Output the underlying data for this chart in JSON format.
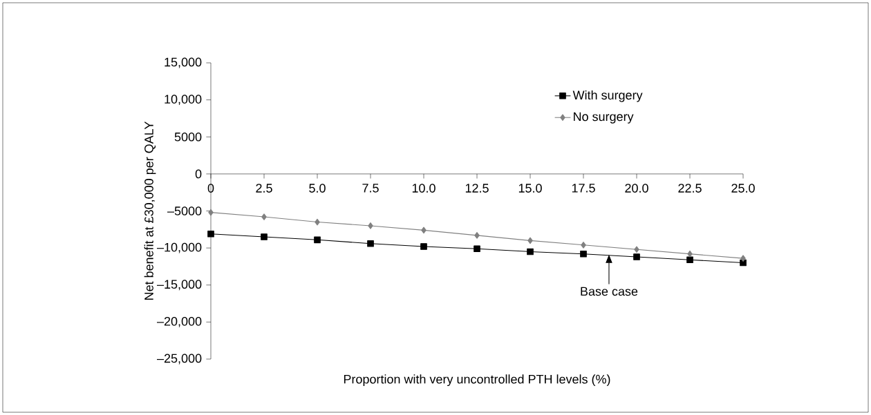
{
  "chart_data": {
    "type": "line",
    "xlabel": "Proportion with very uncontrolled PTH levels (%)",
    "ylabel": "Net benefit at £30,000 per QALY",
    "x": [
      0,
      2.5,
      5,
      7.5,
      10,
      12.5,
      15,
      17.5,
      20,
      22.5,
      25
    ],
    "series": [
      {
        "name": "With surgery",
        "color": "#000000",
        "marker": "square",
        "values": [
          -8100,
          -8500,
          -8900,
          -9400,
          -9800,
          -10100,
          -10500,
          -10800,
          -11200,
          -11600,
          -12000
        ]
      },
      {
        "name": "No surgery",
        "color": "#808080",
        "marker": "diamond",
        "values": [
          -5200,
          -5800,
          -6500,
          -7000,
          -7600,
          -8300,
          -9000,
          -9600,
          -10200,
          -10800,
          -11400
        ]
      }
    ],
    "xlim": [
      0,
      25
    ],
    "ylim": [
      -25000,
      15000
    ],
    "xticks": [
      0,
      2.5,
      {
        "value": 5,
        "label": "5.0"
      },
      7.5,
      {
        "value": 10,
        "label": "10.0"
      },
      12.5,
      {
        "value": 15,
        "label": "15.0"
      },
      17.5,
      {
        "value": 20,
        "label": "20.0"
      },
      22.5,
      {
        "value": 25,
        "label": "25.0"
      }
    ],
    "yticks": [
      {
        "value": -25000,
        "label": "–25,000"
      },
      {
        "value": -20000,
        "label": "–20,000"
      },
      {
        "value": -15000,
        "label": "–15,000"
      },
      {
        "value": -10000,
        "label": "–10,000"
      },
      {
        "value": -5000,
        "label": "–5000"
      },
      0,
      5000,
      {
        "value": 10000,
        "label": "10,000"
      },
      {
        "value": 15000,
        "label": "15,000"
      }
    ],
    "annotations": [
      {
        "text": "Base case",
        "x": 18.7,
        "y": -10900
      }
    ],
    "legend": "top right",
    "line_style": "solid"
  }
}
